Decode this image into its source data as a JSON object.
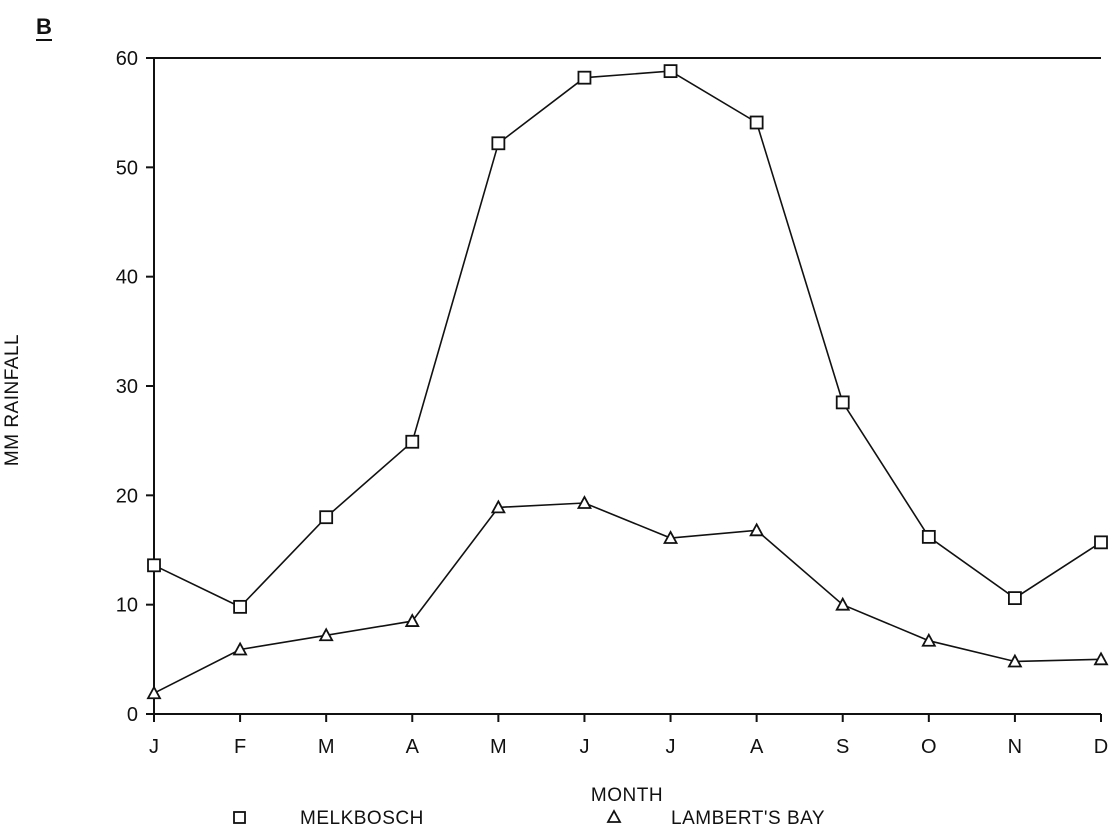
{
  "panel_label": "B",
  "chart_data": {
    "type": "line",
    "ylabel": "MM RAINFALL",
    "xlabel": "MONTH",
    "categories": [
      "J",
      "F",
      "M",
      "A",
      "M",
      "J",
      "J",
      "A",
      "S",
      "O",
      "N",
      "D"
    ],
    "ylim": [
      0,
      60
    ],
    "yticks": [
      0,
      10,
      20,
      30,
      40,
      50,
      60
    ],
    "grid": false,
    "legend_position": "bottom",
    "series": [
      {
        "name": "MELKBOSCH",
        "marker": "square",
        "values": [
          13.6,
          9.8,
          18.0,
          24.9,
          52.2,
          58.2,
          58.8,
          54.1,
          28.5,
          16.2,
          10.6,
          15.7
        ]
      },
      {
        "name": "LAMBERT'S BAY",
        "marker": "triangle",
        "values": [
          1.9,
          5.9,
          7.2,
          8.5,
          18.9,
          19.3,
          16.1,
          16.8,
          10.0,
          6.7,
          4.8,
          5.0
        ]
      }
    ]
  }
}
